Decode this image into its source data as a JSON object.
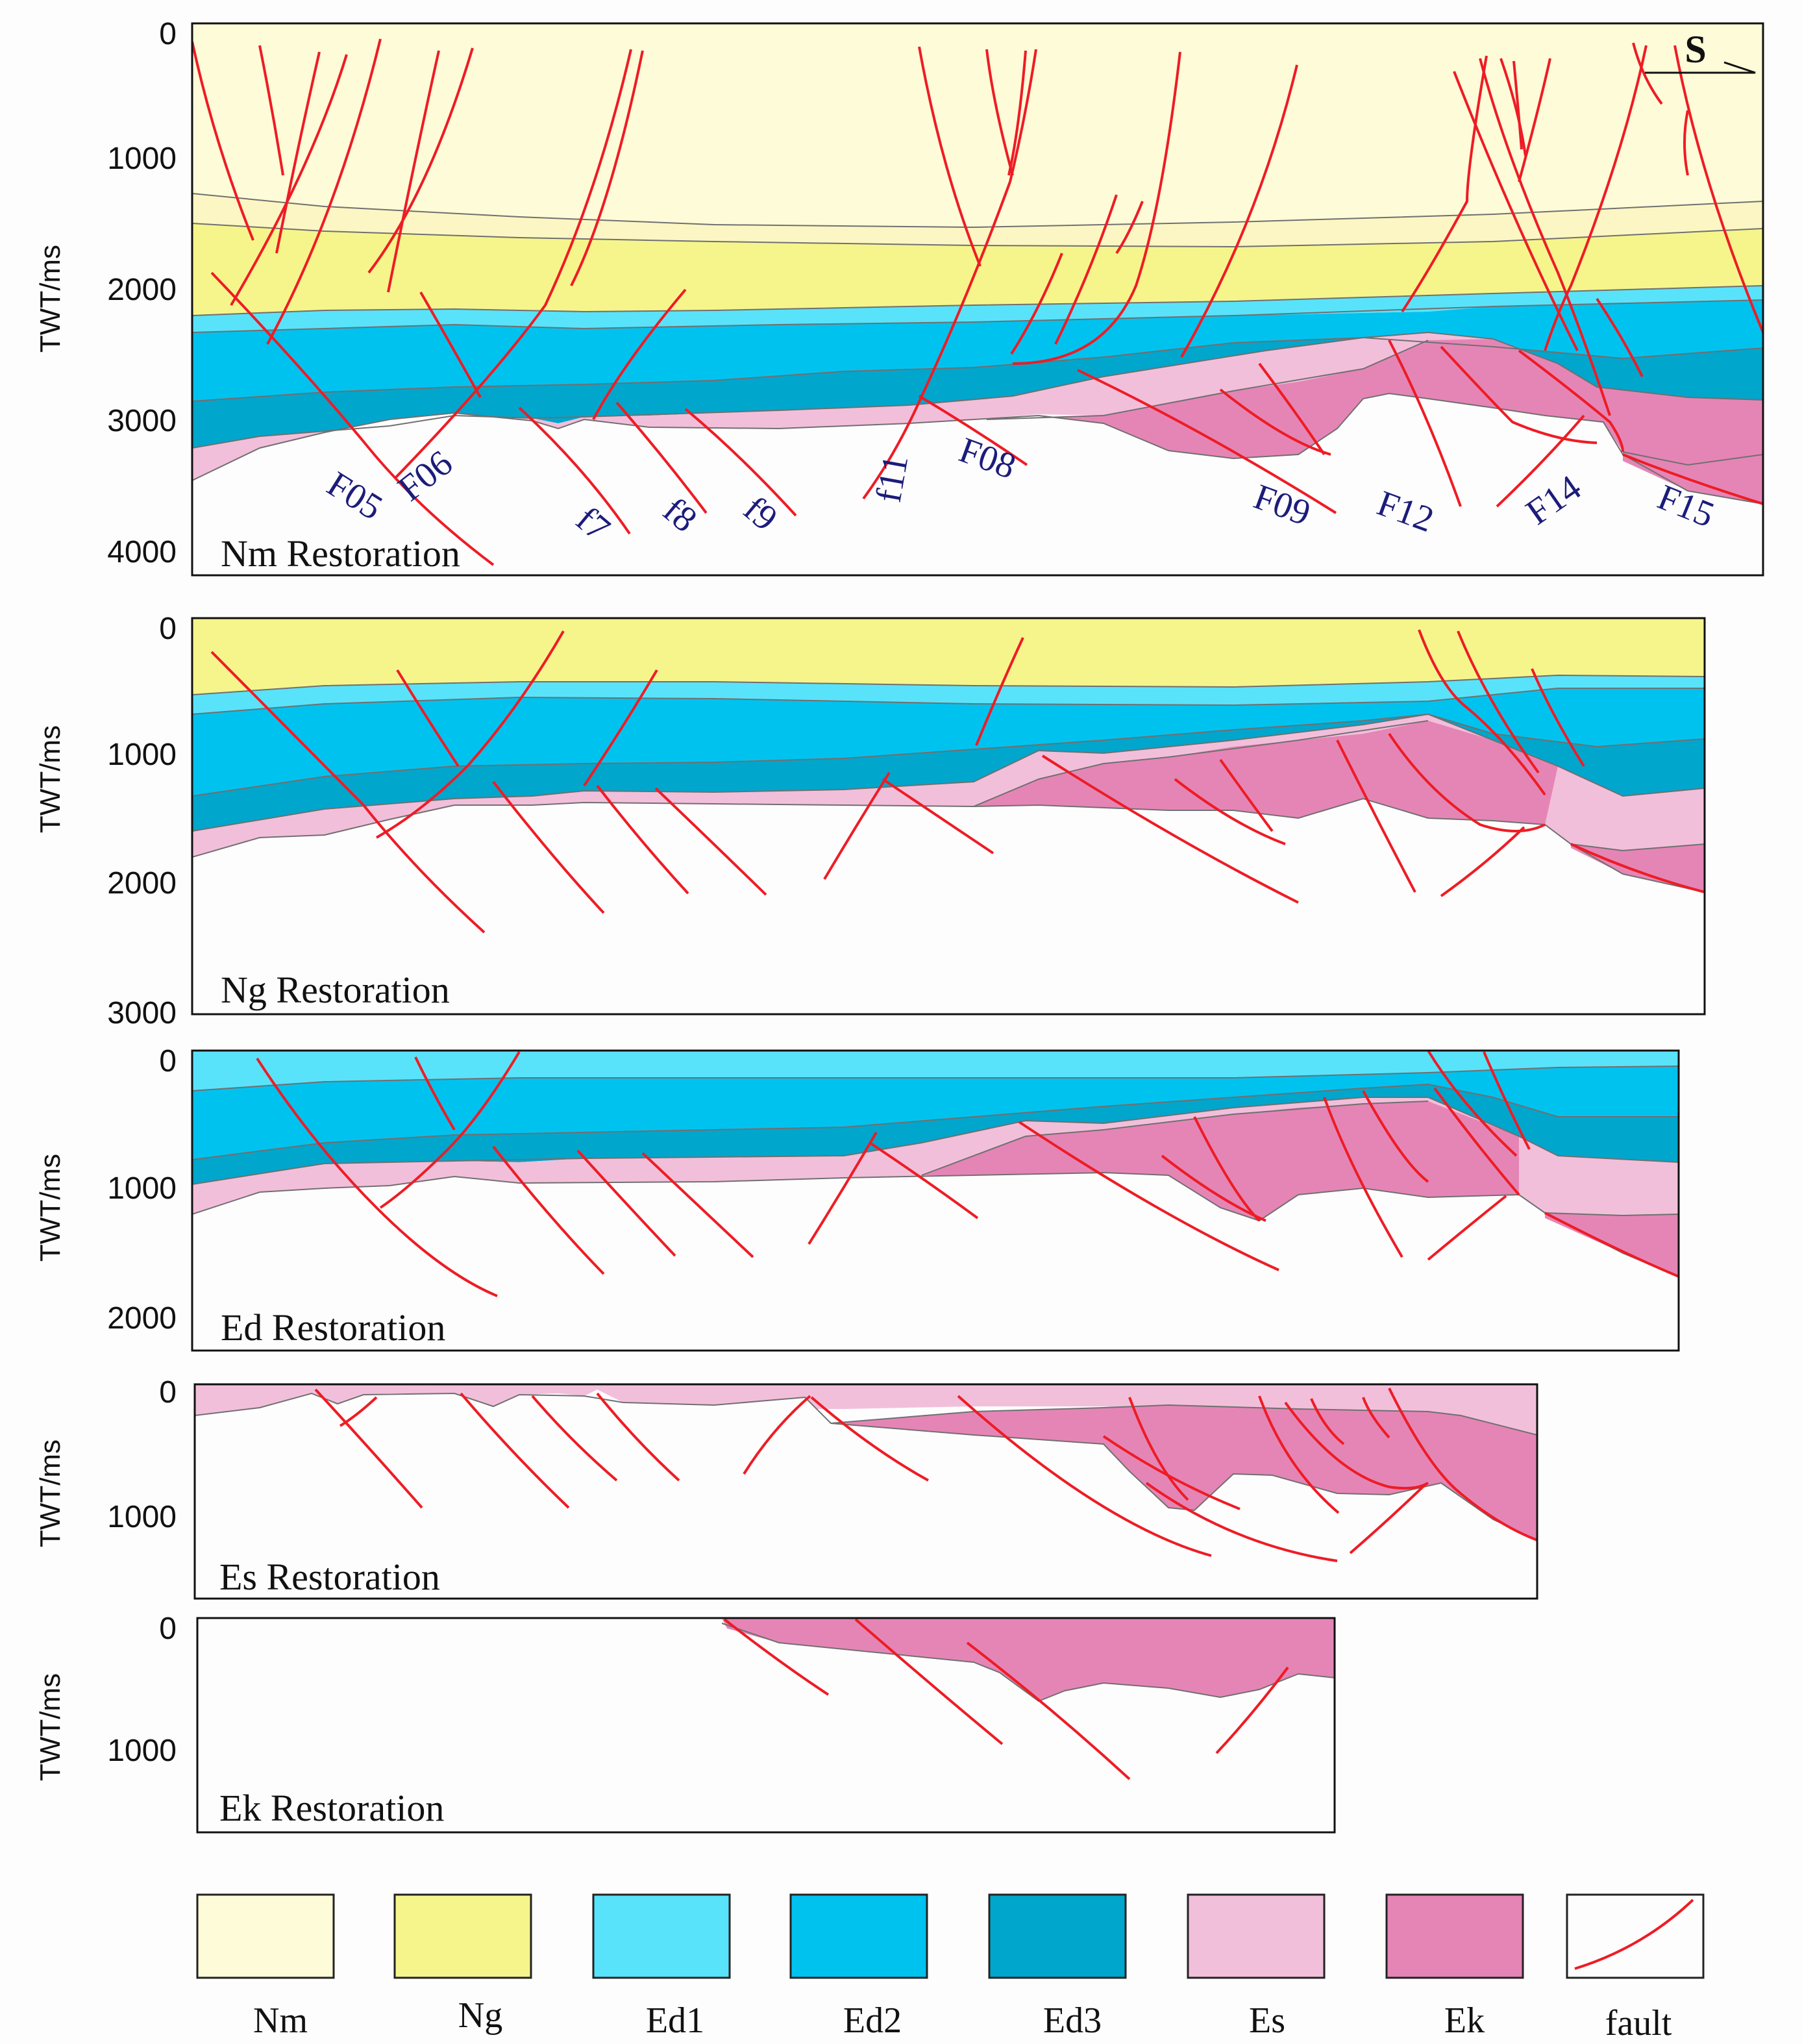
{
  "figure": {
    "y_axis_label": "TWT/ms",
    "north_arrow": "S"
  },
  "panels": [
    {
      "title": "Nm Restoration",
      "ticks": [
        "0",
        "1000",
        "2000",
        "3000",
        "4000"
      ]
    },
    {
      "title": "Ng Restoration",
      "ticks": [
        "0",
        "1000",
        "2000",
        "3000"
      ]
    },
    {
      "title": "Ed Restoration",
      "ticks": [
        "0",
        "1000",
        "2000"
      ]
    },
    {
      "title": "Es Restoration",
      "ticks": [
        "0",
        "1000"
      ]
    },
    {
      "title": "Ek Restoration",
      "ticks": [
        "0",
        "1000"
      ]
    }
  ],
  "fault_labels": [
    "F05",
    "F06",
    "f7",
    "f8",
    "f9",
    "f11",
    "F08",
    "F09",
    "F12",
    "F14",
    "F15"
  ],
  "legend": [
    {
      "key": "Nm",
      "label": "Nm",
      "color": "#fefbd8"
    },
    {
      "key": "Ng",
      "label": "Ng",
      "color": "#f5f58c"
    },
    {
      "key": "Ed1",
      "label": "Ed1",
      "color": "#59e3fa"
    },
    {
      "key": "Ed2",
      "label": "Ed2",
      "color": "#00c2ef"
    },
    {
      "key": "Ed3",
      "label": "Ed3",
      "color": "#00a6cc"
    },
    {
      "key": "Es",
      "label": "Es",
      "color": "#f2bfdb"
    },
    {
      "key": "Ek",
      "label": "Ek",
      "color": "#e585b6"
    },
    {
      "key": "fault",
      "label": "fault",
      "color": "#ee1c25"
    }
  ]
}
